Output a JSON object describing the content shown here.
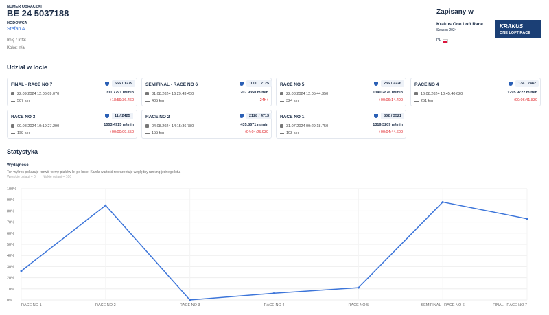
{
  "header": {
    "ring_label": "NUMER OBRĄCZKI",
    "ring": "BE 24 5037188",
    "breeder_label": "HODOWCA",
    "breeder": "Stefan A",
    "info": "Imię / Info:",
    "color": "Kolor: n/a"
  },
  "registered": {
    "title": "Zapisany w",
    "race": "Krakus One Loft Race",
    "season": "Season 2024",
    "country": "PL",
    "logo_top": "KRAKUS",
    "logo_bottom": "ONE LOFT RACE"
  },
  "participation": {
    "title": "Udział w locie",
    "cards": [
      {
        "name": "FINAL - RACE NO 7",
        "rank": "656 / 1279",
        "date": "22.09.2024 12:06:09.070",
        "speed": "311.7791 m/min",
        "distance": "507 km",
        "delay": "+18:59:36.460"
      },
      {
        "name": "SEMIFINAL - RACE NO 6",
        "rank": "1000 / 2125",
        "date": "31.08.2024 16:29:43.450",
        "speed": "207.9350 m/min",
        "distance": "405 km",
        "delay": "24h+"
      },
      {
        "name": "RACE NO 5",
        "rank": "236 / 2226",
        "date": "22.08.2024 12:05:44.350",
        "speed": "1340.2876 m/min",
        "distance": "324 km",
        "delay": "+00:06:14.490"
      },
      {
        "name": "RACE NO 4",
        "rank": "134 / 2482",
        "date": "16.08.2024 10:45:40.620",
        "speed": "1295.9722 m/min",
        "distance": "251 km",
        "delay": "+00:06:41.830"
      },
      {
        "name": "RACE NO 3",
        "rank": "11 / 2425",
        "date": "09.08.2024 10:19:27.290",
        "speed": "1553.4915 m/min",
        "distance": "198 km",
        "delay": "+00:00:09.550"
      },
      {
        "name": "RACE NO 2",
        "rank": "2128 / 4713",
        "date": "04.08.2024 14:15:36.780",
        "speed": "435.8671 m/min",
        "distance": "155 km",
        "delay": "+04:04:25.930"
      },
      {
        "name": "RACE NO 1",
        "rank": "832 / 3521",
        "date": "31.07.2024 09:29:18.750",
        "speed": "1319.3209 m/min",
        "distance": "102 km",
        "delay": "+00:04:44.600"
      }
    ]
  },
  "stats": {
    "title": "Statystyka",
    "subtitle": "Wydajność",
    "description": "Ten wykres pokazuje rozwój formy ptaków lot po locie. Każda wartość reprezentuje względny ranking jednego lotu.",
    "legend_high": "Wysokie osiągi = 0",
    "legend_low": "Niskie osiągi = 100"
  },
  "chart_data": {
    "type": "line",
    "categories": [
      "RACE NO 1",
      "RACE NO 2",
      "RACE NO 3",
      "RACE NO 4",
      "RACE NO 5",
      "SEMIFINAL - RACE NO 6",
      "FINAL - RACE NO 7"
    ],
    "series": [
      {
        "color": "#3b74d9",
        "values": [
          26,
          85,
          0,
          6,
          11,
          88,
          73
        ]
      }
    ],
    "ylim": [
      0,
      100
    ],
    "yticks": [
      {
        "value": 0,
        "label": "0%"
      },
      {
        "value": 10,
        "label": "10%"
      },
      {
        "value": 20,
        "label": "20%"
      },
      {
        "value": 30,
        "label": "30%"
      },
      {
        "value": 40,
        "label": "40%"
      },
      {
        "value": 50,
        "label": "50%"
      },
      {
        "value": 60,
        "label": "60%"
      },
      {
        "value": 70,
        "label": "70%"
      },
      {
        "value": 80,
        "label": "80%"
      },
      {
        "value": 90,
        "label": "90%"
      },
      {
        "value": 100,
        "label": "100%"
      }
    ],
    "grid": true
  }
}
